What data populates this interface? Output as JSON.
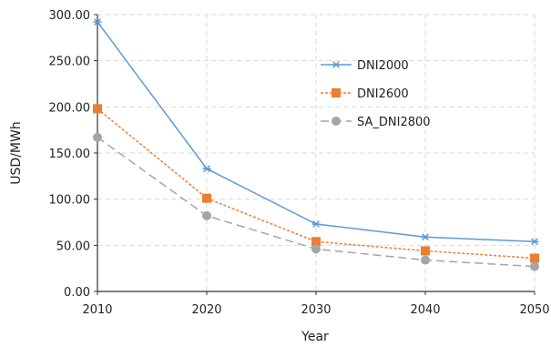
{
  "chart_data": {
    "type": "line",
    "title": "",
    "xlabel": "Year",
    "ylabel": "USD/MWh",
    "x": [
      2010,
      2020,
      2030,
      2040,
      2050
    ],
    "x_tick_labels": [
      "2010",
      "2020",
      "2030",
      "2040",
      "2050"
    ],
    "xlim": [
      2010,
      2050
    ],
    "ylim": [
      0,
      300
    ],
    "y_ticks": [
      0,
      50,
      100,
      150,
      200,
      250,
      300
    ],
    "y_tick_labels": [
      "0.00",
      "50.00",
      "100.00",
      "150.00",
      "200.00",
      "250.00",
      "300.00"
    ],
    "grid": true,
    "grid_style": "dashed",
    "legend_position": "top-right",
    "series": [
      {
        "name": "DNI2000",
        "color": "#5B9BD5",
        "line_style": "solid",
        "marker": "asterisk",
        "values": [
          292,
          133,
          73,
          59,
          54
        ]
      },
      {
        "name": "DNI2600",
        "color": "#ED7D31",
        "line_style": "dotted",
        "marker": "square",
        "values": [
          198,
          101,
          54,
          44,
          36
        ]
      },
      {
        "name": "SA_DNI2800",
        "color": "#A5A5A5",
        "line_style": "dashed",
        "marker": "circle",
        "values": [
          167,
          82,
          46,
          34,
          27
        ]
      }
    ]
  }
}
